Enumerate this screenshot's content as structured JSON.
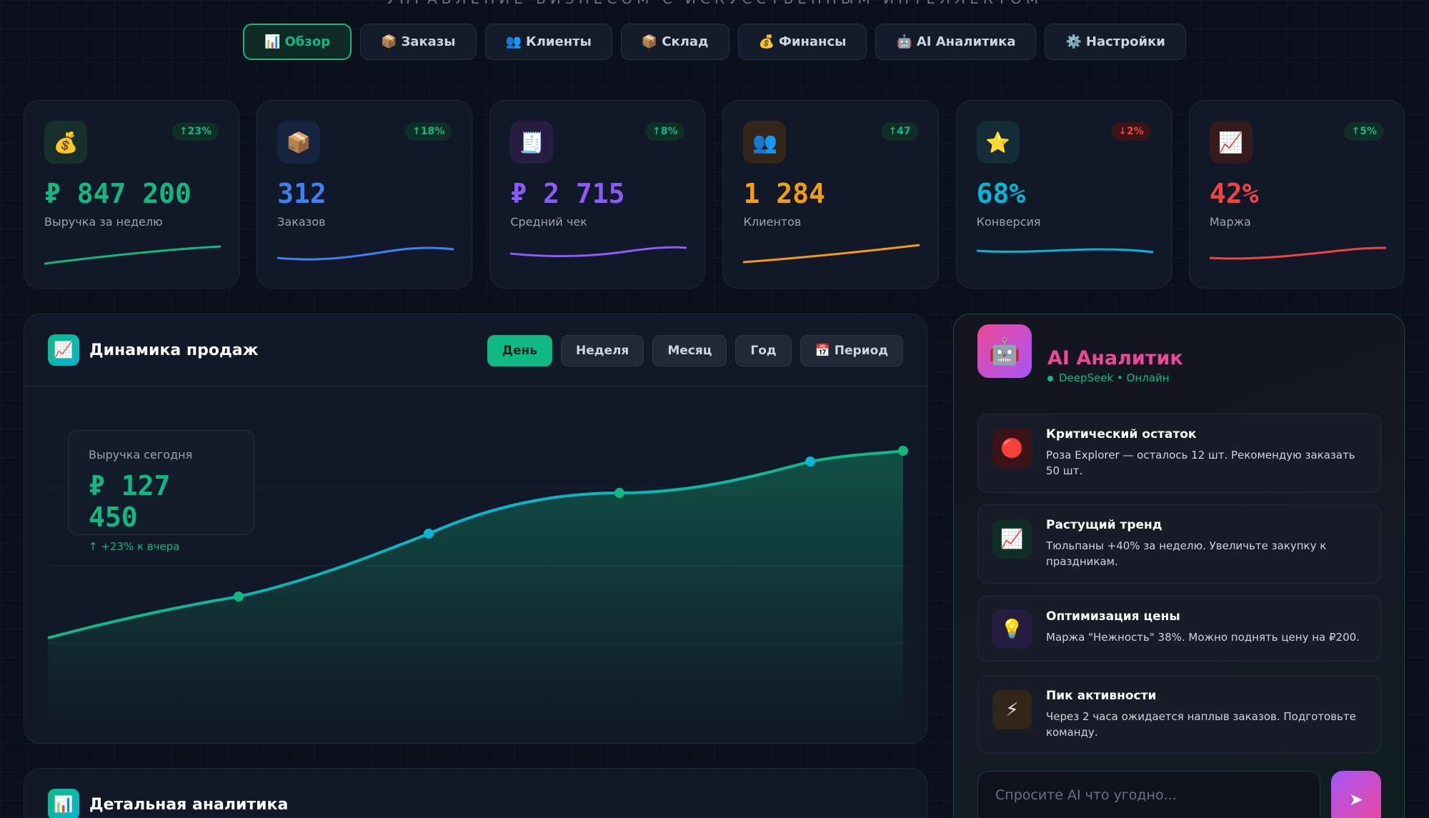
{
  "header": {
    "subtitle": "УПРАВЛЕНИЕ БИЗНЕСОМ С ИСКУССТВЕННЫМ ИНТЕЛЛЕКТОМ"
  },
  "nav": {
    "tabs": [
      {
        "icon": "📊",
        "label": "Обзор"
      },
      {
        "icon": "📦",
        "label": "Заказы"
      },
      {
        "icon": "👥",
        "label": "Клиенты"
      },
      {
        "icon": "📦",
        "label": "Склад"
      },
      {
        "icon": "💰",
        "label": "Финансы"
      },
      {
        "icon": "🤖",
        "label": "AI Аналитика"
      },
      {
        "icon": "⚙️",
        "label": "Настройки"
      }
    ]
  },
  "kpis": [
    {
      "icon": "💰",
      "badge": "↑23%",
      "value": "₽ 847 200",
      "label": "Выручка за неделю"
    },
    {
      "icon": "📦",
      "badge": "↑18%",
      "value": "312",
      "label": "Заказов"
    },
    {
      "icon": "🧾",
      "badge": "↑8%",
      "value": "₽ 2 715",
      "label": "Средний чек"
    },
    {
      "icon": "👥",
      "badge": "↑47",
      "value": "1 284",
      "label": "Клиентов"
    },
    {
      "icon": "⭐",
      "badge": "↓2%",
      "value": "68%",
      "label": "Конверсия"
    },
    {
      "icon": "📈",
      "badge": "↑5%",
      "value": "42%",
      "label": "Маржа"
    }
  ],
  "sales": {
    "icon": "📈",
    "title": "Динамика продаж",
    "periods": [
      "День",
      "Неделя",
      "Месяц",
      "Год",
      "📅 Период"
    ],
    "today": {
      "label": "Выручка сегодня",
      "value": "₽ 127 450",
      "change": "↑ +23% к вчера"
    }
  },
  "ai": {
    "icon": "🤖",
    "title": "AI Аналитик",
    "status": "DeepSeek • Онлайн",
    "items": [
      {
        "icon": "🔴",
        "title": "Критический остаток",
        "text": "Роза Explorer — осталось 12 шт. Рекомендую заказать 50 шт."
      },
      {
        "icon": "📈",
        "title": "Растущий тренд",
        "text": "Тюльпаны +40% за неделю. Увеличьте закупку к праздникам."
      },
      {
        "icon": "💡",
        "title": "Оптимизация цены",
        "text": "Маржа \"Нежность\" 38%. Можно поднять цену на ₽200."
      },
      {
        "icon": "⚡",
        "title": "Пик активности",
        "text": "Через 2 часа ожидается наплыв заказов. Подготовьте команду."
      }
    ],
    "placeholder": "Спросите AI что угодно...",
    "send": "➤"
  },
  "details": {
    "icon": "📊",
    "title": "Детальная аналитика"
  }
}
